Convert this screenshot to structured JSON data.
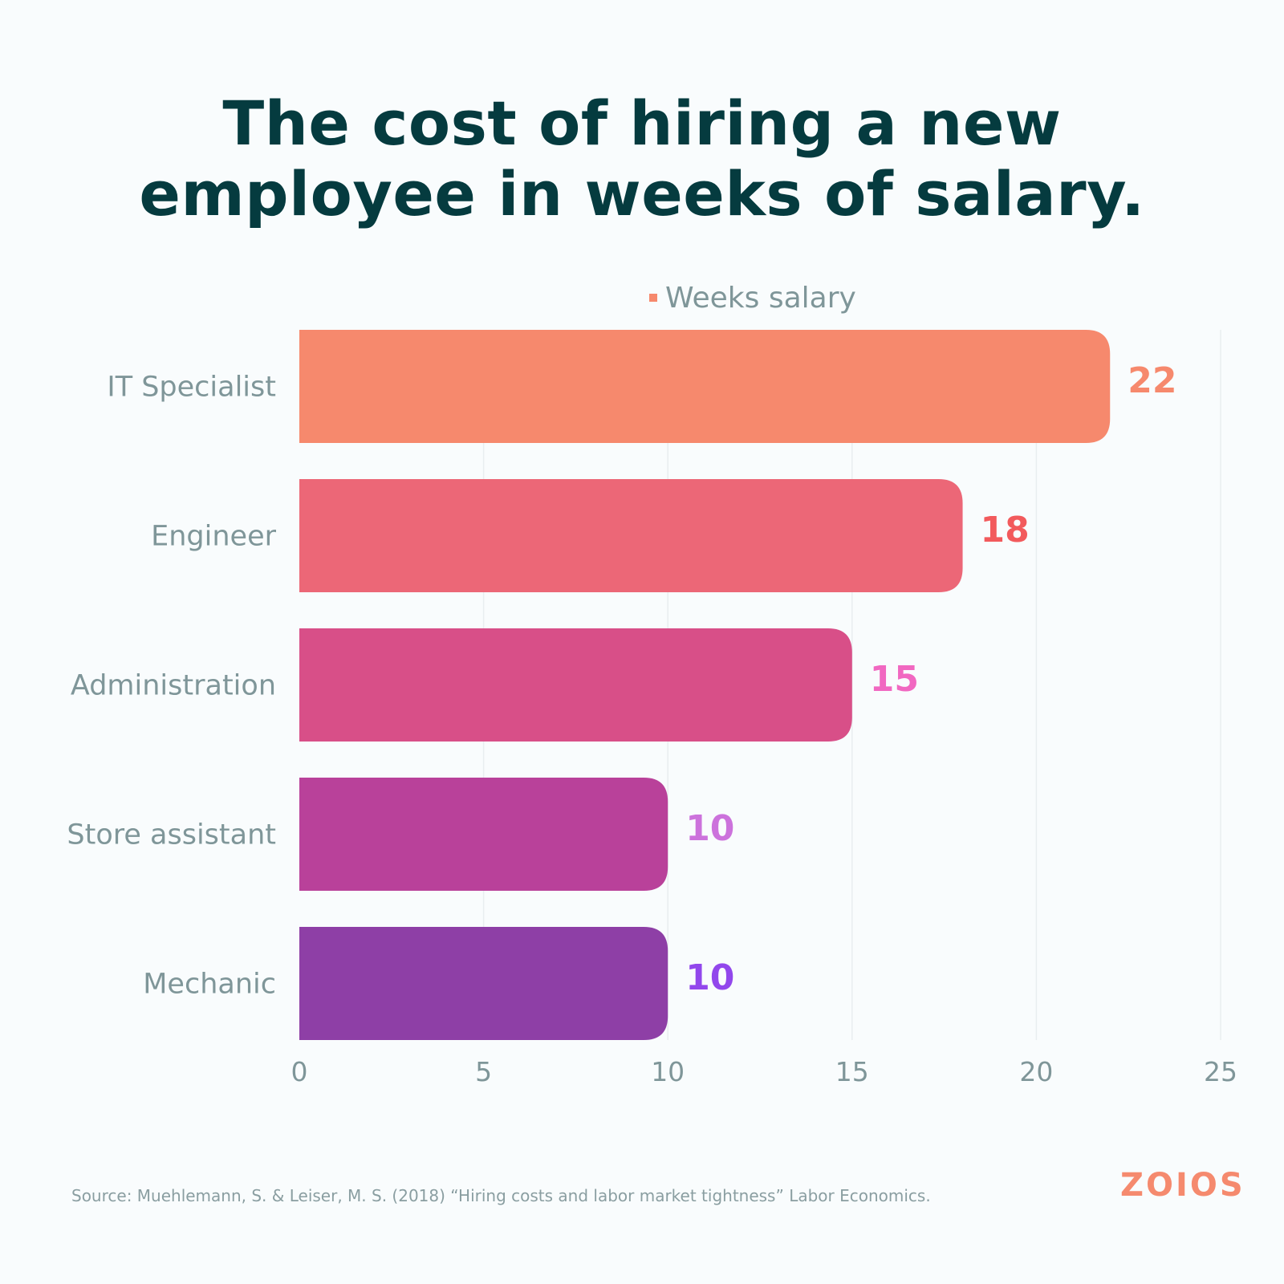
{
  "chart_data": {
    "type": "bar",
    "orientation": "horizontal",
    "title_lines": [
      "The cost of hiring a new",
      "employee in weeks of salary."
    ],
    "categories": [
      "IT Specialist",
      "Engineer",
      "Administration",
      "Store assistant",
      "Mechanic"
    ],
    "series": [
      {
        "name": "Weeks salary",
        "values": [
          22,
          18,
          15,
          10,
          10
        ]
      }
    ],
    "bar_colors": [
      "#f6896d",
      "#ec6777",
      "#d84f88",
      "#b9419a",
      "#8e3fa6"
    ],
    "label_colors": [
      "#f6896d",
      "#f25a5c",
      "#f168c1",
      "#cc72dc",
      "#9247ec"
    ],
    "legend_color": "#f6896d",
    "legend_position": "top-center",
    "xlim": [
      0,
      25
    ],
    "xticks": [
      0,
      5,
      10,
      15,
      20,
      25
    ],
    "grid": true
  },
  "source": "Source: Muehlemann, S. & Leiser, M. S. (2018) “Hiring costs and labor market tightness” Labor Economics.",
  "logo": "ZOIOS"
}
